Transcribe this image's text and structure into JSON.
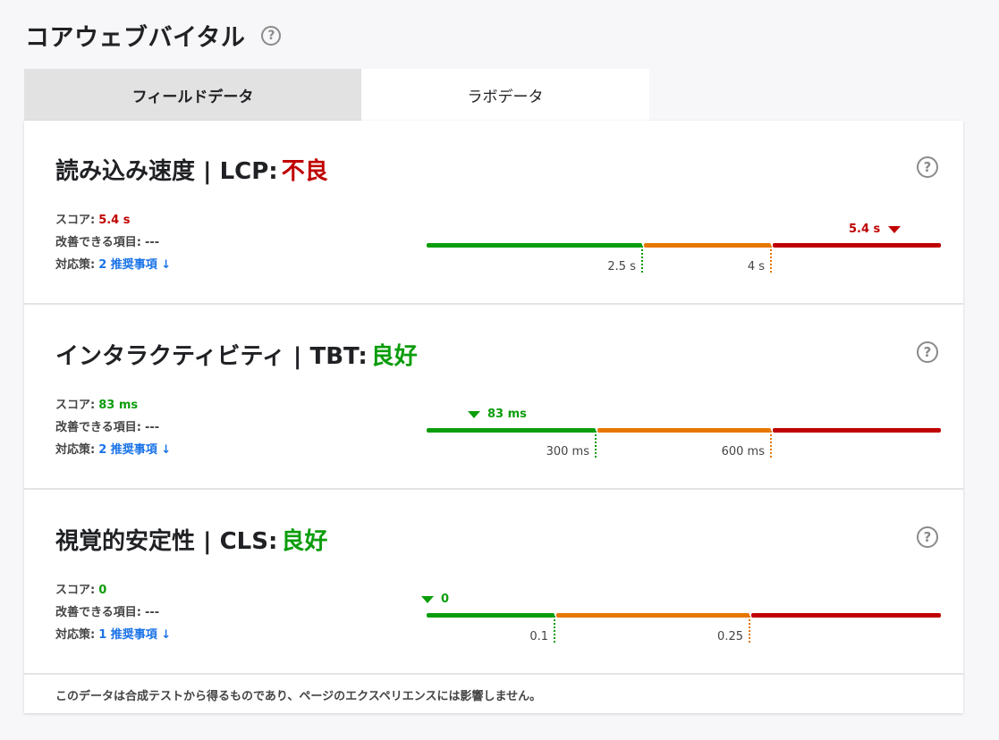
{
  "title": "コアウェブバイタル",
  "help_symbol": "?",
  "tabs": [
    {
      "label": "フィールドデータ"
    },
    {
      "label": "ラボデータ"
    }
  ],
  "active_tab": "ラボデータ",
  "colors": {
    "good": "#0c9d0c",
    "average": "#e67700",
    "poor": "#c00000",
    "link": "#1a73e8"
  },
  "stat_labels": {
    "score": "スコア:",
    "improvable": "改善できる項目:",
    "actions": "対応策:"
  },
  "metrics": [
    {
      "heading": "読み込み速度 | LCP:",
      "verdict": "不良",
      "verdict_status": "poor",
      "score": "5.4 s",
      "improvable": "---",
      "actions": "2 推奨事項 ↓",
      "thresholds": [
        "2.5 s",
        "4 s"
      ],
      "marker_label": "5.4 s",
      "marker_side": "left"
    },
    {
      "heading": "インタラクティビティ | TBT:",
      "verdict": "良好",
      "verdict_status": "good",
      "score": "83 ms",
      "improvable": "---",
      "actions": "2 推奨事項 ↓",
      "thresholds": [
        "300 ms",
        "600 ms"
      ],
      "marker_label": "83 ms",
      "marker_side": "right"
    },
    {
      "heading": "視覚的安定性 | CLS:",
      "verdict": "良好",
      "verdict_status": "good",
      "score": "0",
      "improvable": "---",
      "actions": "1 推奨事項 ↓",
      "thresholds": [
        "0.1",
        "0.25"
      ],
      "marker_label": "0",
      "marker_side": "right"
    }
  ],
  "footer_note": "このデータは合成テストから得るものであり、ページのエクスペリエンスには影響しません。"
}
